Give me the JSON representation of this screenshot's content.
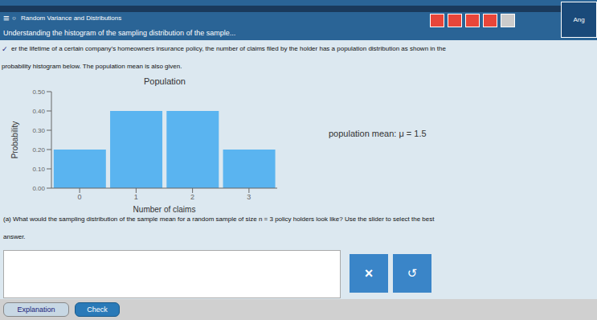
{
  "chart_data": {
    "type": "bar",
    "title": "Population",
    "xlabel": "Number of claims",
    "ylabel": "Probability",
    "categories": [
      "0",
      "1",
      "2",
      "3"
    ],
    "values": [
      0.2,
      0.4,
      0.4,
      0.2
    ],
    "color": "#5ab4f0",
    "ylim": [
      0,
      0.5
    ],
    "yticks": [
      {
        "value": 0.0,
        "label": "0.00"
      },
      {
        "value": 0.1,
        "label": "0.10"
      },
      {
        "value": 0.2,
        "label": "0.20"
      },
      {
        "value": 0.3,
        "label": "0.30"
      },
      {
        "value": 0.4,
        "label": "0.40"
      },
      {
        "value": 0.5,
        "label": "0.50"
      }
    ],
    "grid": false,
    "annotations": [
      "≡",
      "○",
      "Random Variance and Distributions",
      "Understanding the histogram of the sampling distribution of the sample...",
      "Ang",
      "✓",
      "er the lifetime of a certain company’s homeowners insurance policy, the number of claims filed by the holder has a population distribution as shown in the",
      "probability histogram below. The population mean is also given.",
      "population mean: μ = 1.5",
      "(a) What would the sampling distribution of the sample mean for a random sample of size n = 3 policy holders look like? Use the slider to select the best",
      "answer.",
      "×",
      "↺",
      "Explanation",
      "Check"
    ]
  }
}
